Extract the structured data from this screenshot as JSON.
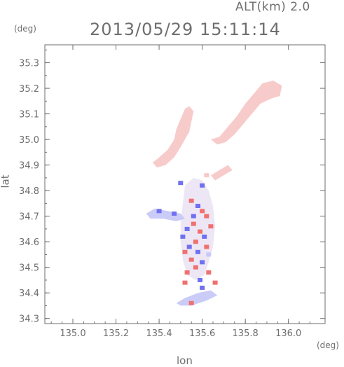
{
  "header": {
    "altitude_label": "ALT(km) 2.0",
    "timestamp": "2013/05/29 15:11:14"
  },
  "chart_data": {
    "type": "heatmap",
    "xlabel": "lon",
    "ylabel": "lat",
    "x_unit": "(deg)",
    "y_unit": "(deg)",
    "xlim": [
      134.87,
      136.17
    ],
    "ylim": [
      34.28,
      35.37
    ],
    "x_ticks": [
      135.0,
      135.2,
      135.4,
      135.6,
      135.8,
      136.0
    ],
    "y_ticks": [
      34.3,
      34.4,
      34.5,
      34.6,
      34.7,
      34.8,
      34.9,
      35.0,
      35.1,
      35.2,
      35.3
    ],
    "grid": false,
    "colors": {
      "positive": "#f07070",
      "weak_positive": "#f8c8c8",
      "negative": "#7070f0",
      "weak_negative": "#c8c8f8",
      "axis": "#6e6e6e"
    },
    "regions": [
      {
        "name": "northwest band",
        "sign": "weak_positive",
        "points": [
          [
            135.37,
            34.91
          ],
          [
            135.4,
            34.93
          ],
          [
            135.44,
            34.96
          ],
          [
            135.47,
            35.0
          ],
          [
            135.48,
            35.04
          ],
          [
            135.5,
            35.08
          ],
          [
            135.52,
            35.12
          ],
          [
            135.54,
            35.13
          ],
          [
            135.56,
            35.11
          ],
          [
            135.55,
            35.07
          ],
          [
            135.54,
            35.03
          ],
          [
            135.52,
            35.0
          ],
          [
            135.5,
            34.97
          ],
          [
            135.47,
            34.93
          ],
          [
            135.43,
            34.9
          ],
          [
            135.39,
            34.89
          ]
        ]
      },
      {
        "name": "northeast band",
        "sign": "weak_positive",
        "points": [
          [
            135.64,
            35.0
          ],
          [
            135.68,
            35.01
          ],
          [
            135.72,
            35.05
          ],
          [
            135.76,
            35.09
          ],
          [
            135.8,
            35.14
          ],
          [
            135.84,
            35.18
          ],
          [
            135.88,
            35.22
          ],
          [
            135.93,
            35.23
          ],
          [
            135.97,
            35.21
          ],
          [
            135.96,
            35.17
          ],
          [
            135.92,
            35.16
          ],
          [
            135.87,
            35.14
          ],
          [
            135.83,
            35.1
          ],
          [
            135.79,
            35.06
          ],
          [
            135.75,
            35.02
          ],
          [
            135.71,
            34.99
          ],
          [
            135.67,
            34.98
          ]
        ]
      },
      {
        "name": "central cluster",
        "sign": "mixed",
        "points": [
          [
            135.52,
            34.82
          ],
          [
            135.56,
            34.85
          ],
          [
            135.6,
            34.84
          ],
          [
            135.63,
            34.8
          ],
          [
            135.65,
            34.74
          ],
          [
            135.66,
            34.66
          ],
          [
            135.65,
            34.58
          ],
          [
            135.63,
            34.52
          ],
          [
            135.61,
            34.47
          ],
          [
            135.57,
            34.45
          ],
          [
            135.53,
            34.47
          ],
          [
            135.51,
            34.53
          ],
          [
            135.5,
            34.6
          ],
          [
            135.5,
            34.68
          ],
          [
            135.51,
            34.75
          ]
        ]
      },
      {
        "name": "west arm",
        "sign": "weak_negative",
        "points": [
          [
            135.34,
            34.71
          ],
          [
            135.38,
            34.73
          ],
          [
            135.44,
            34.72
          ],
          [
            135.5,
            34.71
          ],
          [
            135.52,
            34.69
          ],
          [
            135.48,
            34.68
          ],
          [
            135.42,
            34.69
          ],
          [
            135.36,
            34.69
          ]
        ]
      },
      {
        "name": "south tail",
        "sign": "weak_negative",
        "points": [
          [
            135.48,
            34.36
          ],
          [
            135.52,
            34.38
          ],
          [
            135.58,
            34.4
          ],
          [
            135.64,
            34.41
          ],
          [
            135.67,
            34.39
          ],
          [
            135.62,
            34.37
          ],
          [
            135.55,
            34.35
          ],
          [
            135.5,
            34.35
          ]
        ]
      },
      {
        "name": "east patch",
        "sign": "weak_positive",
        "points": [
          [
            135.64,
            34.86
          ],
          [
            135.68,
            34.88
          ],
          [
            135.72,
            34.9
          ],
          [
            135.74,
            34.88
          ],
          [
            135.7,
            34.86
          ],
          [
            135.66,
            34.84
          ]
        ]
      }
    ],
    "cells": [
      [
        135.55,
        34.76,
        "positive"
      ],
      [
        135.58,
        34.74,
        "negative"
      ],
      [
        135.6,
        34.72,
        "positive"
      ],
      [
        135.62,
        34.7,
        "positive"
      ],
      [
        135.56,
        34.67,
        "positive"
      ],
      [
        135.53,
        34.65,
        "negative"
      ],
      [
        135.59,
        34.64,
        "positive"
      ],
      [
        135.61,
        34.62,
        "negative"
      ],
      [
        135.57,
        34.6,
        "positive"
      ],
      [
        135.54,
        34.58,
        "negative"
      ],
      [
        135.62,
        34.58,
        "positive"
      ],
      [
        135.58,
        34.56,
        "negative"
      ],
      [
        135.55,
        34.53,
        "positive"
      ],
      [
        135.6,
        34.52,
        "negative"
      ],
      [
        135.57,
        34.5,
        "positive"
      ],
      [
        135.53,
        34.48,
        "positive"
      ],
      [
        135.63,
        34.48,
        "positive"
      ],
      [
        135.59,
        34.45,
        "negative"
      ],
      [
        135.51,
        34.62,
        "negative"
      ],
      [
        135.64,
        34.66,
        "positive"
      ],
      [
        135.52,
        34.44,
        "positive"
      ],
      [
        135.66,
        34.44,
        "positive"
      ],
      [
        135.5,
        34.83,
        "negative"
      ],
      [
        135.6,
        34.82,
        "negative"
      ],
      [
        135.62,
        34.86,
        "weak_positive"
      ],
      [
        135.47,
        34.71,
        "negative"
      ],
      [
        135.4,
        34.72,
        "negative"
      ],
      [
        135.55,
        34.36,
        "positive"
      ],
      [
        135.6,
        34.42,
        "negative"
      ],
      [
        135.56,
        34.7,
        "negative"
      ],
      [
        135.63,
        34.55,
        "weak_negative"
      ],
      [
        135.52,
        34.56,
        "positive"
      ]
    ]
  }
}
